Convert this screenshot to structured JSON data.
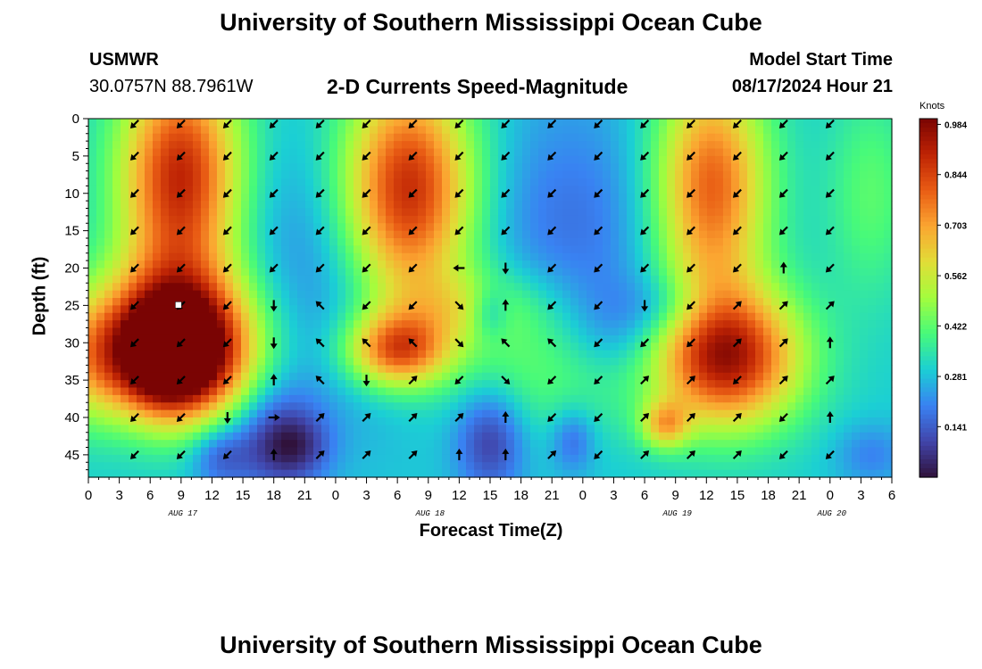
{
  "header": {
    "title": "University of Southern Mississippi Ocean Cube",
    "station": "USMWR",
    "coordinates": "30.0757N  88.7961W",
    "chart_title": "2-D Currents Speed-Magnitude",
    "model_start_label": "Model Start Time",
    "model_start_value": "08/17/2024 Hour 21"
  },
  "footer": {
    "title": "University of Southern Mississippi Ocean Cube"
  },
  "chart_data": {
    "type": "heatmap",
    "title": "2-D Currents Speed-Magnitude",
    "xlabel": "Forecast Time(Z)",
    "ylabel": "Depth (ft)",
    "units_label": "Knots",
    "x_ticks": [
      "0",
      "3",
      "6",
      "9",
      "12",
      "15",
      "18",
      "21",
      "0",
      "3",
      "6",
      "9",
      "12",
      "15",
      "18",
      "21",
      "0",
      "3",
      "6",
      "9",
      "12",
      "15",
      "18",
      "21",
      "0",
      "3",
      "6"
    ],
    "x_hours": [
      0,
      3,
      6,
      9,
      12,
      15,
      18,
      21,
      24,
      27,
      30,
      33,
      36,
      39,
      42,
      45,
      48,
      51,
      54,
      57,
      60,
      63,
      66,
      69,
      72,
      75,
      78
    ],
    "date_labels": [
      {
        "text": "AUG 17",
        "hour": 9
      },
      {
        "text": "AUG 18",
        "hour": 33
      },
      {
        "text": "AUG 19",
        "hour": 57
      },
      {
        "text": "AUG 20",
        "hour": 72
      }
    ],
    "xlim": [
      0,
      78
    ],
    "y_ticks": [
      0,
      5,
      10,
      15,
      20,
      25,
      30,
      35,
      40,
      45
    ],
    "ylim": [
      0,
      48
    ],
    "colorbar_ticks": [
      0.984,
      0.844,
      0.703,
      0.562,
      0.422,
      0.281,
      0.141
    ],
    "colorbar_range": [
      0.0,
      1.0
    ],
    "marker": {
      "hour": 8.7,
      "depth": 25
    },
    "speed_blobs": [
      {
        "h": 9,
        "d": 8,
        "sh": 4.2,
        "sd": 11,
        "v": 0.62
      },
      {
        "h": 9,
        "d": 29,
        "sh": 5.5,
        "sd": 7,
        "v": 0.55
      },
      {
        "h": 12,
        "d": 33,
        "sh": 3.5,
        "sd": 6,
        "v": 0.2
      },
      {
        "h": 31,
        "d": 10,
        "sh": 4.5,
        "sd": 11,
        "v": 0.64
      },
      {
        "h": 30,
        "d": 31,
        "sh": 3.5,
        "sd": 3.5,
        "v": 0.5
      },
      {
        "h": 7,
        "d": 32,
        "sh": 3.5,
        "sd": 5.5,
        "v": 0.6
      },
      {
        "h": 60.5,
        "d": 9,
        "sh": 3.8,
        "sd": 11,
        "v": 0.5
      },
      {
        "h": 62,
        "d": 32,
        "sh": 5,
        "sd": 6.5,
        "v": 0.62
      },
      {
        "h": 56,
        "d": 41,
        "sh": 1.6,
        "sd": 2.2,
        "v": 0.3
      },
      {
        "h": 0,
        "d": 32,
        "sh": 2.5,
        "sd": 6,
        "v": 0.25
      },
      {
        "h": 36,
        "d": 25,
        "sh": 5,
        "sd": 3.5,
        "v": 0.15
      },
      {
        "h": 45,
        "d": 32,
        "sh": 7,
        "sd": 8,
        "v": 0.22
      },
      {
        "h": 23,
        "d": 22,
        "sh": 10,
        "sd": 14,
        "v": -0.12
      },
      {
        "h": 18,
        "d": 43,
        "sh": 3,
        "sd": 5,
        "v": -0.2
      },
      {
        "h": 39,
        "d": 43,
        "sh": 2.4,
        "sd": 5,
        "v": -0.22
      },
      {
        "h": 47,
        "d": 20,
        "sh": 6,
        "sd": 16,
        "v": -0.14
      },
      {
        "h": 52,
        "d": 28,
        "sh": 4,
        "sd": 5,
        "v": -0.14
      },
      {
        "h": 12.7,
        "d": 45,
        "sh": 2,
        "sd": 3,
        "v": -0.15
      },
      {
        "h": 20.5,
        "d": 44,
        "sh": 2.2,
        "sd": 3,
        "v": -0.12
      },
      {
        "h": 39,
        "d": 26,
        "sh": 1.3,
        "sd": 2.5,
        "v": -0.14
      },
      {
        "h": 47,
        "d": 43,
        "sh": 1.5,
        "sd": 3,
        "v": -0.14
      },
      {
        "h": 57,
        "d": 25,
        "sh": 3,
        "sd": 3,
        "v": -0.1
      },
      {
        "h": 76,
        "d": 45,
        "sh": 2.5,
        "sd": 3,
        "v": -0.1
      },
      {
        "h": 76,
        "d": 10,
        "sh": 3,
        "sd": 10,
        "v": 0.12
      }
    ],
    "speed_base": 0.3,
    "vector_hours": [
      4.5,
      9,
      13.5,
      18,
      22.5,
      27,
      31.5,
      36,
      40.5,
      45,
      49.5,
      54,
      58.5,
      63,
      67.5,
      72
    ],
    "vector_depths": [
      0,
      5,
      10,
      15,
      20,
      25,
      30,
      35,
      40,
      45
    ],
    "vector_directions_deg": [
      [
        135,
        135,
        135,
        135,
        135,
        135,
        135,
        135,
        135,
        135
      ],
      [
        135,
        135,
        135,
        135,
        135,
        135,
        135,
        135,
        135,
        135
      ],
      [
        135,
        135,
        135,
        135,
        135,
        135,
        135,
        135,
        90,
        135
      ],
      [
        135,
        135,
        135,
        135,
        135,
        90,
        90,
        270,
        0,
        270
      ],
      [
        135,
        135,
        135,
        135,
        135,
        225,
        225,
        225,
        315,
        315
      ],
      [
        135,
        135,
        135,
        135,
        135,
        135,
        225,
        90,
        315,
        315
      ],
      [
        135,
        135,
        135,
        135,
        135,
        135,
        225,
        315,
        315,
        315
      ],
      [
        135,
        135,
        135,
        135,
        180,
        45,
        45,
        135,
        315,
        270
      ],
      [
        135,
        135,
        135,
        135,
        90,
        270,
        225,
        45,
        270,
        270
      ],
      [
        135,
        135,
        135,
        135,
        135,
        135,
        225,
        135,
        135,
        315
      ],
      [
        135,
        135,
        135,
        135,
        135,
        135,
        135,
        135,
        135,
        135
      ],
      [
        135,
        135,
        135,
        135,
        135,
        90,
        135,
        315,
        315,
        315
      ],
      [
        135,
        135,
        135,
        135,
        135,
        135,
        135,
        315,
        315,
        315
      ],
      [
        135,
        135,
        135,
        135,
        135,
        315,
        315,
        135,
        315,
        315
      ],
      [
        135,
        135,
        135,
        135,
        270,
        315,
        315,
        315,
        135,
        135
      ],
      [
        135,
        135,
        135,
        135,
        135,
        315,
        270,
        315,
        270,
        135
      ]
    ]
  }
}
